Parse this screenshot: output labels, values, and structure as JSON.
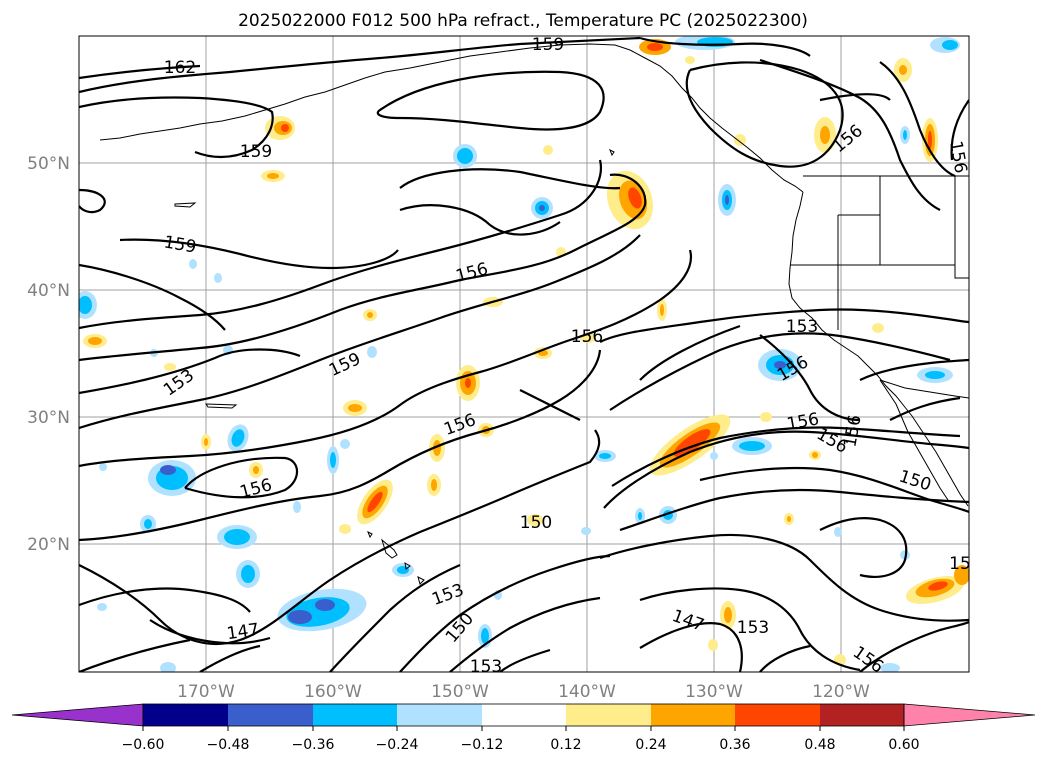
{
  "title": "2025022000 F012 500 hPa refract., Temperature PC (2025022300)",
  "lat_ticks": [
    "50°N",
    "40°N",
    "30°N",
    "20°N"
  ],
  "lon_ticks": [
    "170°W",
    "160°W",
    "150°W",
    "140°W",
    "130°W",
    "120°W"
  ],
  "contour_labels": [
    "162",
    "159",
    "159",
    "159",
    "159",
    "156",
    "156",
    "156",
    "156",
    "156",
    "156",
    "156",
    "156",
    "156",
    "156",
    "153",
    "153",
    "153",
    "153",
    "153",
    "150",
    "150",
    "150",
    "147",
    "147",
    "156",
    "15"
  ],
  "colorbar": {
    "tick_labels": [
      "−0.60",
      "−0.48",
      "−0.36",
      "−0.24",
      "−0.12",
      "0.12",
      "0.24",
      "0.36",
      "0.48",
      "0.60"
    ],
    "colors": [
      "#9932cc",
      "#00008b",
      "#3a5fcd",
      "#00bfff",
      "#b0e2ff",
      "#ffffff",
      "#ffec8b",
      "#ffa500",
      "#ff4500",
      "#b22222",
      "#ff82ab"
    ]
  }
}
